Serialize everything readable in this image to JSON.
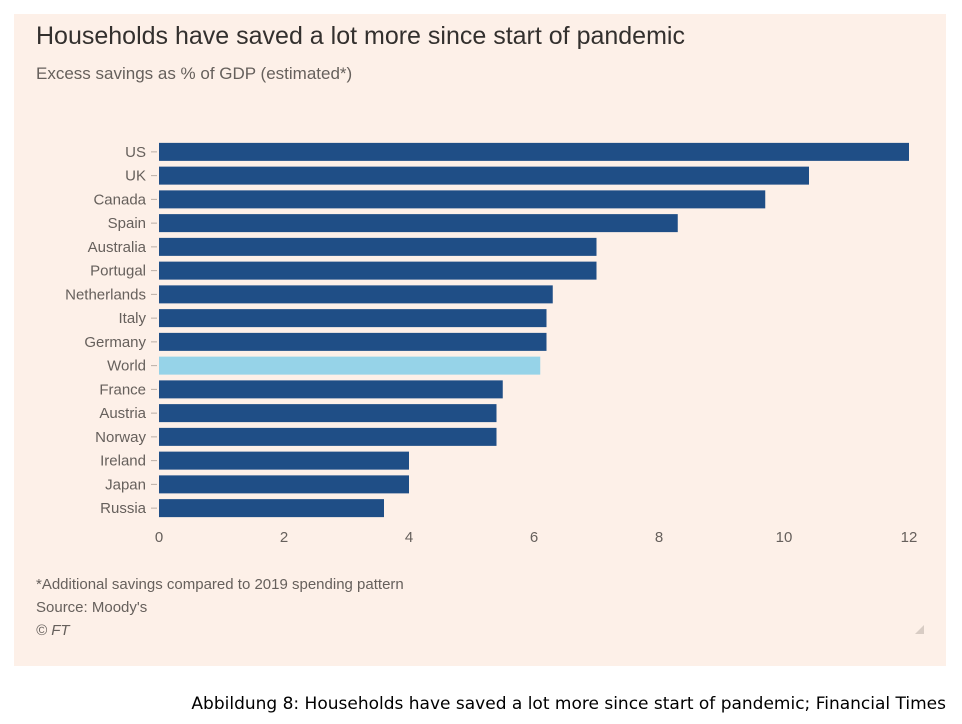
{
  "title": "Households have saved a lot more since start of pandemic",
  "subtitle": "Excess savings as % of GDP (estimated*)",
  "footnote": "*Additional savings compared to 2019 spending pattern",
  "source": "Source: Moody's",
  "credit": "© FT",
  "caption": "Abbildung 8: Households have saved a lot more since start of pandemic; Financial Times",
  "colors": {
    "background": "#fdf0e8",
    "bar": "#1f4e86",
    "highlight": "#96d3e8",
    "axis_text": "#66605c"
  },
  "chart_data": {
    "type": "bar",
    "orientation": "horizontal",
    "title": "Households have saved a lot more since start of pandemic",
    "subtitle": "Excess savings as % of GDP (estimated*)",
    "categories": [
      "US",
      "UK",
      "Canada",
      "Spain",
      "Australia",
      "Portugal",
      "Netherlands",
      "Italy",
      "Germany",
      "World",
      "France",
      "Austria",
      "Norway",
      "Ireland",
      "Japan",
      "Russia"
    ],
    "values": [
      12.0,
      10.4,
      9.7,
      8.3,
      7.0,
      7.0,
      6.3,
      6.2,
      6.2,
      6.1,
      5.5,
      5.4,
      5.4,
      4.0,
      4.0,
      3.6
    ],
    "highlight": "World",
    "xlim": [
      0,
      12
    ],
    "xticks": [
      0,
      2,
      4,
      6,
      8,
      10,
      12
    ],
    "grid": false,
    "legend": "none"
  }
}
